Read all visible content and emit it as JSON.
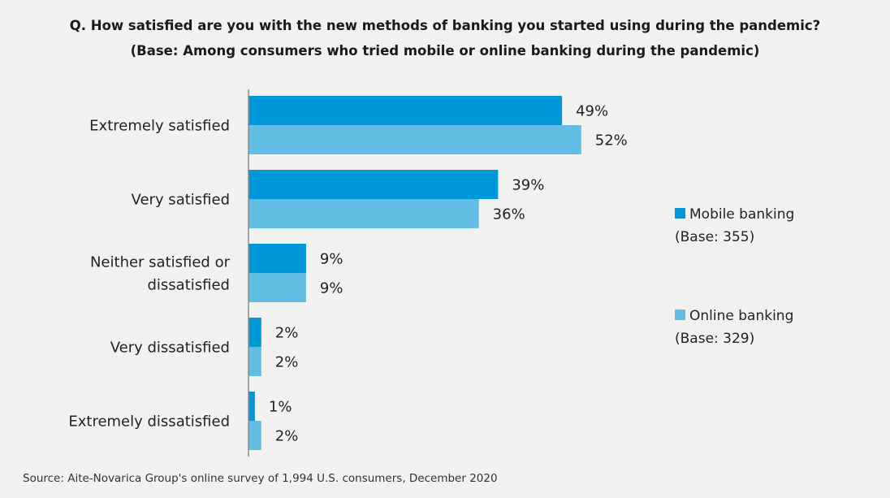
{
  "title": {
    "line1": "Q. How satisfied are you with the new methods of banking you started using during the pandemic?",
    "line2": "(Base: Among consumers who tried mobile or online banking during the pandemic)"
  },
  "chart_data": {
    "type": "bar",
    "orientation": "horizontal",
    "categories": [
      [
        "Extremely satisfied"
      ],
      [
        "Very satisfied"
      ],
      [
        "Neither satisfied or",
        "dissatisfied"
      ],
      [
        "Very dissatisfied"
      ],
      [
        "Extremely dissatisfied"
      ]
    ],
    "series": [
      {
        "name": "Mobile banking",
        "base": "(Base: 355)",
        "color": "#0098d9",
        "values": [
          49,
          39,
          9,
          2,
          1
        ]
      },
      {
        "name": "Online banking",
        "base": "(Base: 329)",
        "color": "#62bde4",
        "values": [
          52,
          36,
          9,
          2,
          2
        ]
      }
    ],
    "value_suffix": "%",
    "xlim": [
      0,
      100
    ],
    "legend_position": "right"
  },
  "source": "Source: Aite-Novarica Group's online survey of  1,994 U.S. consumers, December 2020"
}
